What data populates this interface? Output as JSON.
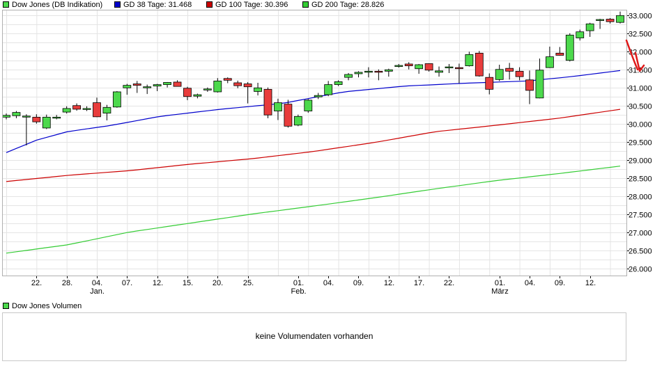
{
  "legend": [
    {
      "label": "Dow Jones (DB Indikation)",
      "color": "#4cd94c"
    },
    {
      "label": "GD 38 Tage: 31.468",
      "color": "#0000cc"
    },
    {
      "label": "GD 100 Tage: 30.396",
      "color": "#cc0000"
    },
    {
      "label": "GD 200 Tage: 28.826",
      "color": "#33cc33"
    }
  ],
  "volume": {
    "legend_label": "Dow Jones Volumen",
    "legend_color": "#4cd94c",
    "message": "keine Volumendaten vorhanden"
  },
  "chart_data": {
    "type": "candlestick",
    "title": "Dow Jones (DB Indikation)",
    "ylim": [
      25800,
      33150
    ],
    "yticks": [
      26000,
      26500,
      27000,
      27500,
      28000,
      28500,
      29000,
      29500,
      30000,
      30500,
      31000,
      31500,
      32000,
      32500,
      33000
    ],
    "ytick_labels": [
      "26.000",
      "26.500",
      "27.000",
      "27.500",
      "28.000",
      "28.500",
      "29.000",
      "29.500",
      "30.000",
      "30.500",
      "31.000",
      "31.500",
      "32.000",
      "32.500",
      "33.000"
    ],
    "xtick_labels": [
      {
        "day": "22.",
        "month": ""
      },
      {
        "day": "28.",
        "month": ""
      },
      {
        "day": "04.",
        "month": "Jan."
      },
      {
        "day": "07.",
        "month": ""
      },
      {
        "day": "12.",
        "month": ""
      },
      {
        "day": "15.",
        "month": ""
      },
      {
        "day": "20.",
        "month": ""
      },
      {
        "day": "25.",
        "month": ""
      },
      {
        "day": "01.",
        "month": "Feb."
      },
      {
        "day": "04.",
        "month": ""
      },
      {
        "day": "09.",
        "month": ""
      },
      {
        "day": "12.",
        "month": ""
      },
      {
        "day": "17.",
        "month": ""
      },
      {
        "day": "22.",
        "month": ""
      },
      {
        "day": "01.",
        "month": "März"
      },
      {
        "day": "04.",
        "month": ""
      },
      {
        "day": "09.",
        "month": ""
      },
      {
        "day": "12.",
        "month": ""
      }
    ],
    "xtick_index": [
      3,
      6,
      9,
      12,
      15,
      18,
      21,
      24,
      29,
      32,
      35,
      38,
      41,
      44,
      49,
      52,
      55,
      58
    ],
    "up_color": "#4cd94c",
    "down_color": "#e83c3c",
    "candles": [
      {
        "o": 30180,
        "h": 30280,
        "l": 30120,
        "c": 30230
      },
      {
        "o": 30220,
        "h": 30350,
        "l": 30150,
        "c": 30310
      },
      {
        "o": 30200,
        "h": 30260,
        "l": 29400,
        "c": 30210
      },
      {
        "o": 30180,
        "h": 30260,
        "l": 30000,
        "c": 30050
      },
      {
        "o": 29880,
        "h": 30250,
        "l": 29850,
        "c": 30180
      },
      {
        "o": 30160,
        "h": 30240,
        "l": 30120,
        "c": 30180
      },
      {
        "o": 30320,
        "h": 30480,
        "l": 30280,
        "c": 30420
      },
      {
        "o": 30500,
        "h": 30560,
        "l": 30360,
        "c": 30400
      },
      {
        "o": 30420,
        "h": 30480,
        "l": 30350,
        "c": 30420
      },
      {
        "o": 30580,
        "h": 30720,
        "l": 30180,
        "c": 30190
      },
      {
        "o": 30290,
        "h": 30520,
        "l": 30090,
        "c": 30450
      },
      {
        "o": 30460,
        "h": 30900,
        "l": 30440,
        "c": 30880
      },
      {
        "o": 30990,
        "h": 31100,
        "l": 30800,
        "c": 31060
      },
      {
        "o": 31100,
        "h": 31180,
        "l": 30850,
        "c": 31060
      },
      {
        "o": 31000,
        "h": 31080,
        "l": 30820,
        "c": 31020
      },
      {
        "o": 31040,
        "h": 31100,
        "l": 30900,
        "c": 31080
      },
      {
        "o": 31080,
        "h": 31150,
        "l": 31000,
        "c": 31140
      },
      {
        "o": 31150,
        "h": 31200,
        "l": 31040,
        "c": 31030
      },
      {
        "o": 30980,
        "h": 31020,
        "l": 30650,
        "c": 30750
      },
      {
        "o": 30760,
        "h": 30830,
        "l": 30700,
        "c": 30800
      },
      {
        "o": 30930,
        "h": 31000,
        "l": 30880,
        "c": 30960
      },
      {
        "o": 30880,
        "h": 31260,
        "l": 30860,
        "c": 31180
      },
      {
        "o": 31250,
        "h": 31280,
        "l": 31120,
        "c": 31200
      },
      {
        "o": 31130,
        "h": 31190,
        "l": 30980,
        "c": 31050
      },
      {
        "o": 31100,
        "h": 31150,
        "l": 30560,
        "c": 31020
      },
      {
        "o": 30890,
        "h": 31130,
        "l": 30780,
        "c": 30990
      },
      {
        "o": 30950,
        "h": 31000,
        "l": 30150,
        "c": 30240
      },
      {
        "o": 30350,
        "h": 30690,
        "l": 30100,
        "c": 30580
      },
      {
        "o": 30540,
        "h": 30660,
        "l": 29890,
        "c": 29930
      },
      {
        "o": 29960,
        "h": 30250,
        "l": 29930,
        "c": 30200
      },
      {
        "o": 30350,
        "h": 30680,
        "l": 30300,
        "c": 30650
      },
      {
        "o": 30740,
        "h": 30850,
        "l": 30680,
        "c": 30780
      },
      {
        "o": 30800,
        "h": 31180,
        "l": 30760,
        "c": 31080
      },
      {
        "o": 31080,
        "h": 31200,
        "l": 31040,
        "c": 31160
      },
      {
        "o": 31280,
        "h": 31400,
        "l": 31200,
        "c": 31360
      },
      {
        "o": 31380,
        "h": 31450,
        "l": 31280,
        "c": 31420
      },
      {
        "o": 31450,
        "h": 31560,
        "l": 31280,
        "c": 31450
      },
      {
        "o": 31450,
        "h": 31500,
        "l": 31200,
        "c": 31430
      },
      {
        "o": 31450,
        "h": 31520,
        "l": 31300,
        "c": 31490
      },
      {
        "o": 31580,
        "h": 31650,
        "l": 31550,
        "c": 31610
      },
      {
        "o": 31650,
        "h": 31700,
        "l": 31500,
        "c": 31600
      },
      {
        "o": 31520,
        "h": 31650,
        "l": 31380,
        "c": 31630
      },
      {
        "o": 31660,
        "h": 31670,
        "l": 31440,
        "c": 31480
      },
      {
        "o": 31420,
        "h": 31580,
        "l": 31300,
        "c": 31460
      },
      {
        "o": 31570,
        "h": 31650,
        "l": 31400,
        "c": 31570
      },
      {
        "o": 31550,
        "h": 31660,
        "l": 31120,
        "c": 31520
      },
      {
        "o": 31600,
        "h": 31990,
        "l": 31580,
        "c": 31910
      },
      {
        "o": 31950,
        "h": 32010,
        "l": 31300,
        "c": 31320
      },
      {
        "o": 31280,
        "h": 31390,
        "l": 30810,
        "c": 30950
      },
      {
        "o": 31220,
        "h": 31630,
        "l": 31180,
        "c": 31500
      },
      {
        "o": 31530,
        "h": 31680,
        "l": 31220,
        "c": 31450
      },
      {
        "o": 31450,
        "h": 31560,
        "l": 31200,
        "c": 31300
      },
      {
        "o": 31210,
        "h": 31470,
        "l": 30540,
        "c": 30920
      },
      {
        "o": 30710,
        "h": 31800,
        "l": 30700,
        "c": 31480
      },
      {
        "o": 31550,
        "h": 32130,
        "l": 31540,
        "c": 31850
      },
      {
        "o": 31950,
        "h": 32120,
        "l": 31880,
        "c": 31890
      },
      {
        "o": 31750,
        "h": 32500,
        "l": 31720,
        "c": 32450
      },
      {
        "o": 32370,
        "h": 32600,
        "l": 32300,
        "c": 32540
      },
      {
        "o": 32570,
        "h": 32790,
        "l": 32400,
        "c": 32760
      },
      {
        "o": 32860,
        "h": 32900,
        "l": 32620,
        "c": 32880
      },
      {
        "o": 32890,
        "h": 32920,
        "l": 32770,
        "c": 32820
      },
      {
        "o": 32800,
        "h": 33100,
        "l": 32770,
        "c": 32990
      }
    ],
    "series": [
      {
        "name": "GD 38 Tage",
        "color": "#0000cc",
        "start": 29200,
        "end": 31468,
        "shape": [
          [
            0,
            29200
          ],
          [
            0.05,
            29550
          ],
          [
            0.1,
            29780
          ],
          [
            0.17,
            29950
          ],
          [
            0.25,
            30200
          ],
          [
            0.35,
            30400
          ],
          [
            0.45,
            30560
          ],
          [
            0.55,
            30880
          ],
          [
            0.65,
            31040
          ],
          [
            0.75,
            31120
          ],
          [
            0.85,
            31180
          ],
          [
            0.92,
            31300
          ],
          [
            1,
            31468
          ]
        ]
      },
      {
        "name": "GD 100 Tage",
        "color": "#cc0000",
        "start": 28400,
        "end": 30396,
        "shape": [
          [
            0,
            28400
          ],
          [
            0.1,
            28570
          ],
          [
            0.2,
            28700
          ],
          [
            0.3,
            28880
          ],
          [
            0.4,
            29030
          ],
          [
            0.5,
            29230
          ],
          [
            0.6,
            29480
          ],
          [
            0.7,
            29780
          ],
          [
            0.8,
            29960
          ],
          [
            0.9,
            30150
          ],
          [
            1,
            30396
          ]
        ]
      },
      {
        "name": "GD 200 Tage",
        "color": "#33cc33",
        "start": 26420,
        "end": 28826,
        "shape": [
          [
            0,
            26420
          ],
          [
            0.1,
            26650
          ],
          [
            0.2,
            27000
          ],
          [
            0.3,
            27250
          ],
          [
            0.4,
            27500
          ],
          [
            0.5,
            27720
          ],
          [
            0.6,
            27950
          ],
          [
            0.7,
            28200
          ],
          [
            0.8,
            28430
          ],
          [
            0.9,
            28620
          ],
          [
            1,
            28826
          ]
        ]
      }
    ]
  }
}
